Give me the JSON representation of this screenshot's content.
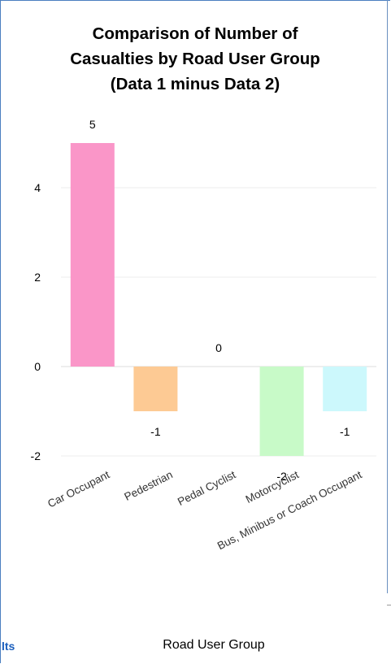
{
  "chart_data": {
    "type": "bar",
    "title_lines": [
      "Comparison of Number of",
      "Casualties by Road User Group",
      "(Data 1 minus Data 2)"
    ],
    "xlabel": "Road User Group",
    "ylabel": "",
    "categories": [
      "Car Occupant",
      "Pedestrian",
      "Pedal Cyclist",
      "Motorcyclist",
      "Bus, Minibus or Coach Occupant"
    ],
    "values": [
      5,
      -1,
      0,
      -2,
      -1
    ],
    "colors": [
      "#fa96c8",
      "#fdca94",
      "#b3b3b3",
      "#c8fac8",
      "#ccf8fc"
    ],
    "yticks": [
      -2,
      0,
      2,
      4
    ],
    "ylim": [
      -2,
      5
    ],
    "grid": true
  },
  "footer": {
    "link_fragment": "lts"
  }
}
